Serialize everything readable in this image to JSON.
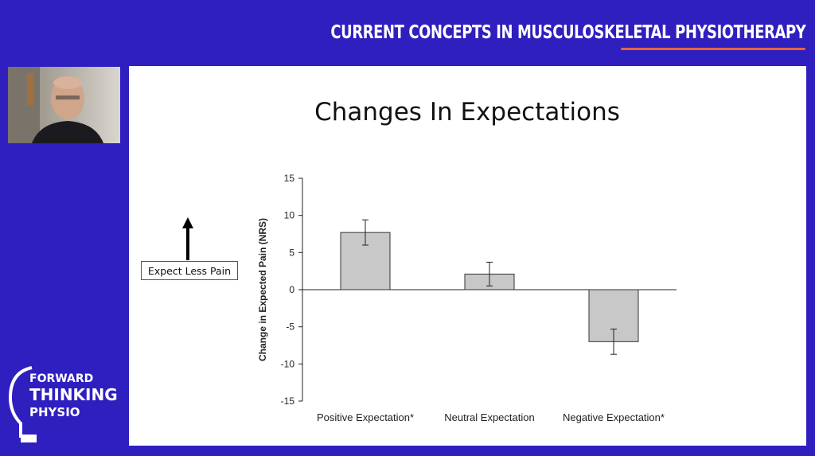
{
  "header": {
    "title": "CURRENT CONCEPTS IN MUSCULOSKELETAL PHYSIOTHERAPY",
    "accent_color": "#e8623f",
    "background_color": "#2f1fbf"
  },
  "webcam": {
    "icon": "presenter-webcam-icon"
  },
  "slide": {
    "title": "Changes In Expectations",
    "annotation": "Expect Less Pain"
  },
  "logo": {
    "line1": "FORWARD",
    "line2": "THINKING",
    "line3": "PHYSIO",
    "icon": "lightbulb-icon"
  },
  "chart_data": {
    "type": "bar",
    "categories": [
      "Positive Expectation*",
      "Neutral Expectation",
      "Negative Expectation*"
    ],
    "values": [
      7.7,
      2.1,
      -7.0
    ],
    "error": [
      1.7,
      1.6,
      1.7
    ],
    "ylabel": "Change in Expected Pain (NRS)",
    "xlabel": "",
    "ylim": [
      -15,
      15
    ],
    "yticks": [
      15,
      10,
      5,
      0,
      -5,
      -10,
      -15
    ],
    "bar_color": "#c8c8c8",
    "grid": false
  }
}
